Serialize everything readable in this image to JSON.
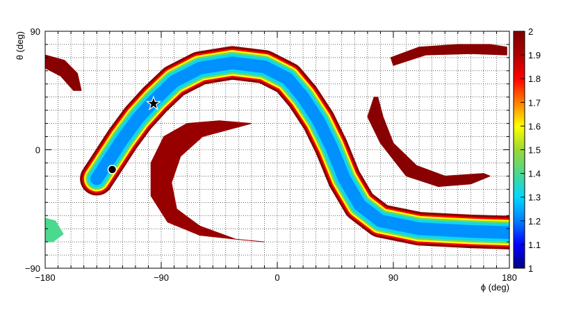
{
  "chart_data": {
    "type": "heatmap",
    "title": "",
    "xlabel": "ϕ (deg)",
    "ylabel": "θ (deg)",
    "xlim": [
      -180,
      180
    ],
    "ylim": [
      -90,
      90
    ],
    "x_ticks": [
      -180,
      -90,
      0,
      90,
      180
    ],
    "y_ticks": [
      -90,
      0,
      90
    ],
    "x_tick_labels": [
      "−180",
      "−90",
      "0",
      "90",
      "180"
    ],
    "y_tick_labels": [
      "−90",
      "0",
      "90"
    ],
    "grid": true,
    "colorbar": {
      "min": 1,
      "max": 2,
      "ticks": [
        1,
        1.1,
        1.2,
        1.3,
        1.4,
        1.5,
        1.6,
        1.7,
        1.8,
        1.9,
        2
      ],
      "tick_labels": [
        "1",
        "1.1",
        "1.2",
        "1.3",
        "1.4",
        "1.5",
        "1.6",
        "1.7",
        "1.8",
        "1.9",
        "2"
      ],
      "colors": [
        "#00007f",
        "#0000ff",
        "#007fff",
        "#00d8ff",
        "#4bd88f",
        "#9bd836",
        "#ffff00",
        "#ff7f00",
        "#ff0000",
        "#b00000",
        "#7f0000"
      ]
    },
    "regions": [
      {
        "name": "main-band",
        "description": "S-shaped low-value band (~1.2 core, ~1.9 edges)",
        "centerline": [
          [
            -140,
            -22
          ],
          [
            -132,
            -10
          ],
          [
            -120,
            8
          ],
          [
            -108,
            24
          ],
          [
            -95,
            38
          ],
          [
            -80,
            52
          ],
          [
            -60,
            62
          ],
          [
            -35,
            66
          ],
          [
            -10,
            63
          ],
          [
            8,
            54
          ],
          [
            20,
            40
          ],
          [
            32,
            22
          ],
          [
            42,
            2
          ],
          [
            52,
            -22
          ],
          [
            64,
            -42
          ],
          [
            80,
            -54
          ],
          [
            110,
            -60
          ],
          [
            150,
            -62
          ],
          [
            180,
            -63
          ]
        ],
        "halfwidth_deg": 13
      },
      {
        "name": "crescent-lower-left",
        "value": 1.95,
        "outer": [
          [
            -20,
            20
          ],
          [
            -45,
            22
          ],
          [
            -70,
            20
          ],
          [
            -88,
            10
          ],
          [
            -98,
            -10
          ],
          [
            -98,
            -35
          ],
          [
            -85,
            -55
          ],
          [
            -60,
            -65
          ],
          [
            -32,
            -68
          ],
          [
            -10,
            -70
          ]
        ],
        "inner": [
          [
            -32,
            -68
          ],
          [
            -60,
            -58
          ],
          [
            -78,
            -45
          ],
          [
            -82,
            -25
          ],
          [
            -75,
            -5
          ],
          [
            -58,
            10
          ],
          [
            -20,
            20
          ]
        ]
      },
      {
        "name": "crescent-upper-right",
        "value": 1.98,
        "outer": [
          [
            88,
            70
          ],
          [
            110,
            78
          ],
          [
            140,
            80
          ],
          [
            165,
            80
          ],
          [
            178,
            78
          ]
        ],
        "inner": [
          [
            178,
            72
          ],
          [
            150,
            73
          ],
          [
            115,
            72
          ],
          [
            90,
            64
          ]
        ]
      },
      {
        "name": "crescent-right",
        "value": 1.98,
        "outer": [
          [
            75,
            40
          ],
          [
            70,
            25
          ],
          [
            80,
            5
          ],
          [
            100,
            -20
          ],
          [
            125,
            -28
          ],
          [
            150,
            -26
          ],
          [
            165,
            -20
          ]
        ],
        "inner": [
          [
            160,
            -18
          ],
          [
            130,
            -20
          ],
          [
            108,
            -12
          ],
          [
            90,
            5
          ],
          [
            82,
            25
          ],
          [
            78,
            40
          ]
        ]
      },
      {
        "name": "fragment-top-left",
        "value": 1.98,
        "outer": [
          [
            -180,
            72
          ],
          [
            -165,
            68
          ],
          [
            -155,
            58
          ],
          [
            -152,
            45
          ]
        ],
        "inner": [
          [
            -158,
            45
          ],
          [
            -168,
            56
          ],
          [
            -180,
            62
          ]
        ]
      },
      {
        "name": "fragment-bottom-left",
        "value": 1.4,
        "outer": [
          [
            -180,
            -52
          ],
          [
            -172,
            -54
          ],
          [
            -166,
            -64
          ],
          [
            -174,
            -70
          ],
          [
            -180,
            -70
          ]
        ],
        "inner": []
      }
    ],
    "markers": [
      {
        "label": "star",
        "symbol": "star",
        "x": -96,
        "y": 35
      },
      {
        "label": "circle",
        "symbol": "circle",
        "x": -128,
        "y": -15
      }
    ]
  }
}
